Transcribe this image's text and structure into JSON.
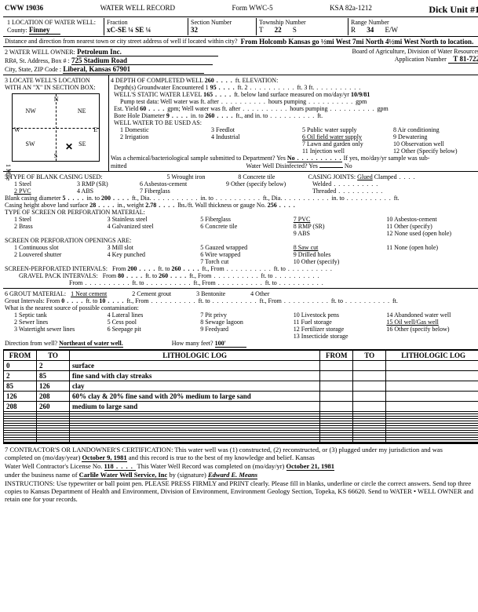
{
  "form": {
    "code": "CWW 19036",
    "title": "WATER WELL RECORD",
    "form_no": "Form WWC-5",
    "ksa": "KSA 82a-1212",
    "unit": "Dick Unit #1"
  },
  "loc": {
    "label": "1 LOCATION OF WATER WELL:",
    "county_label": "County:",
    "county": "Finney",
    "fraction_label": "Fraction",
    "fraction": "xC-SE ¼ SE ¼",
    "section_label": "Section Number",
    "section": "32",
    "township_label": "Township Number",
    "township_t": "T",
    "township": "22",
    "township_s": "S",
    "range_label": "Range Number",
    "range_r": "R",
    "range": "34",
    "range_ew": "E/W",
    "dist_label": "Distance and direction from nearest town or city street address of well if located within city?",
    "dist": "From Holcomb Kansas go ½mi West 7mi North 4½mi West North to location."
  },
  "owner": {
    "label": "2 WATER WELL OWNER:",
    "name": "Petroleum Inc.",
    "addr_label": "RR#, St. Address, Box # :",
    "addr": "725 Stadium Road",
    "csz_label": "City, State, ZIP Code :",
    "csz": "Liberal, Kansas 67901",
    "board": "Board of Agriculture, Division of Water Resources",
    "app_label": "Application Number",
    "app": "T 81-722"
  },
  "sec3": {
    "label": "3 LOCATE WELL'S LOCATION WITH AN \"X\" IN SECTION BOX:",
    "side": "1 Mile",
    "nw": "NW",
    "ne": "NE",
    "sw": "SW",
    "se": "SE",
    "n": "N",
    "s": "S",
    "e": "E",
    "w": "W"
  },
  "sec4": {
    "label": "4 DEPTH OF COMPLETED WELL",
    "depth": "260",
    "depth_unit": "ft. ELEVATION:",
    "gw_label": "Depth(s) Groundwater Encountered",
    "gw1": "1",
    "gw1v": "95",
    "gw_ft": "ft.",
    "gw2": "2",
    "gw3": "ft. 3",
    "gw_ft2": "ft.",
    "static_label": "WELL'S STATIC WATER LEVEL",
    "static": "165",
    "static_txt": "ft. below land surface measured on mo/day/yr",
    "static_date": "10/9/81",
    "pump_label": "Pump test data:  Well water was",
    "pump_after": "ft. after",
    "pump_hours": "hours pumping",
    "pump_gpm": "gpm",
    "yield_label": "Est. Yield",
    "yield": "60",
    "yield_unit": "gpm;  Well water was",
    "yield_after": "ft. after",
    "yield_hours": "hours pumping",
    "yield_gpm": "gpm",
    "bore_label": "Bore Hole Diameter",
    "bore": "9",
    "bore_in": "in. to",
    "bore_to": "260",
    "bore_ft": "ft., and",
    "bore_in2": "in. to",
    "bore_ft2": "ft.",
    "use_label": "WELL WATER TO BE USED AS:",
    "u1": "1 Domestic",
    "u2": "2 Irrigation",
    "u3": "3 Feedlot",
    "u4": "4 Industrial",
    "u5": "5 Public water supply",
    "u6": "6 Oil field water supply",
    "u7": "7 Lawn and garden only",
    "u8": "8 Air conditioning",
    "u9": "9 Dewatering",
    "u10": "10 Observation well",
    "u11": "11 Injection well",
    "u12": "12 Other (Specify below)",
    "bact_label": "Was a chemical/bacteriological sample submitted to Department? Yes",
    "bact_no": "No",
    "bact_txt": "If yes, mo/day/yr sample was sub-",
    "mitted": "mitted",
    "disinfect": "Water Well Disinfected?  Yes",
    "disinfect_no": "No"
  },
  "sec5": {
    "label": "5 TYPE OF BLANK CASING USED:",
    "c1": "1 Steel",
    "c2": "2 PVC",
    "c3": "3 RMP (SR)",
    "c4": "4 ABS",
    "c5": "5 Wrought iron",
    "c6": "6 Asbestos-cement",
    "c7": "7 Fiberglass",
    "c8": "8 Concrete tile",
    "c9": "9 Other (specify below)",
    "joints": "CASING JOINTS:",
    "j1": "Glued",
    "j2": "Clamped",
    "j3": "Welded",
    "j4": "Threaded",
    "dia_label": "Blank casing diameter",
    "dia": "5",
    "dia_in": "in. to",
    "dia_to": "200",
    "dia_ft": "ft., Dia.",
    "dia_in2": "in. to",
    "dia_ft2": "ft., Dia.",
    "dia_in3": "in. to",
    "dia_ft3": "ft.",
    "height_label": "Casing height above land surface",
    "height": "28",
    "height_in": "in., weight",
    "weight": "2.78",
    "weight_unit": "lbs./ft. Wall thickness or gauge No.",
    "gauge": "256",
    "screen_label": "TYPE OF SCREEN OR PERFORATION MATERIAL:",
    "s1": "1 Steel",
    "s2": "2 Brass",
    "s3": "3 Stainless steel",
    "s4": "4 Galvanized steel",
    "s5": "5 Fiberglass",
    "s6": "6 Concrete tile",
    "s7": "7 PVC",
    "s8": "8 RMP (SR)",
    "s9": "9 ABS",
    "s10": "10 Asbestos-cement",
    "s11": "11 Other (specify)",
    "s12": "12 None used (open hole)",
    "open_label": "SCREEN OR PERFORATION OPENINGS ARE:",
    "o1": "1 Continuous slot",
    "o2": "2 Louvered shutter",
    "o3": "3 Mill slot",
    "o4": "4 Key punched",
    "o5": "5 Gauzed wrapped",
    "o6": "6 Wire wrapped",
    "o7": "7 Torch cut",
    "o8": "8 Saw cut",
    "o9": "9 Drilled holes",
    "o10": "10 Other (specify)",
    "o11": "11 None (open hole)",
    "spi_label": "SCREEN-PERFORATED INTERVALS:",
    "from": "From",
    "to": "ft. to",
    "ft": "ft., From",
    "spi_from": "200",
    "spi_to": "260",
    "gpi_label": "GRAVEL PACK INTERVALS:",
    "gpi_from": "80",
    "gpi_to": "260"
  },
  "sec6": {
    "label": "6 GROUT MATERIAL:",
    "g1": "1 Neat cement",
    "g2": "2 Cement grout",
    "g3": "3 Bentonite",
    "g4": "4 Other",
    "gi_label": "Grout Intervals: From",
    "gi_from": "0",
    "gi_to": "ft. to",
    "gi_tov": "10",
    "gi_ft": "ft., From",
    "gi_ft2": "ft. to",
    "gi_ft3": "ft., From",
    "gi_ft4": "ft. to",
    "gi_ft5": "ft.",
    "contam_label": "What is the nearest source of possible contamination:",
    "ct1": "1 Septic tank",
    "ct2": "2 Sewer lines",
    "ct3": "3 Watertight sewer lines",
    "ct4": "4 Lateral lines",
    "ct5": "5 Cess pool",
    "ct6": "6 Seepage pit",
    "ct7": "7 Pit privy",
    "ct8": "8 Sewage lagoon",
    "ct9": "9 Feedyard",
    "ct10": "10 Livestock pens",
    "ct11": "11 Fuel storage",
    "ct12": "12 Fertilizer storage",
    "ct13": "13 Insecticide storage",
    "ct14": "14 Abandoned water well",
    "ct15": "15 Oil well/Gas well",
    "ct16": "16 Other (specify below)",
    "dir_label": "Direction from well?",
    "dir": "Northeast of water well.",
    "feet_label": "How many feet?",
    "feet": "100'"
  },
  "log": {
    "hdr_from": "FROM",
    "hdr_to": "TO",
    "hdr_lith": "LITHOLOGIC LOG",
    "rows": [
      {
        "f": "0",
        "t": "2",
        "d": "surface"
      },
      {
        "f": "2",
        "t": "85",
        "d": "fine sand with clay streaks"
      },
      {
        "f": "85",
        "t": "126",
        "d": "clay"
      },
      {
        "f": "126",
        "t": "208",
        "d": "60% clay & 20% fine sand with 20% medium to large sand"
      },
      {
        "f": "208",
        "t": "260",
        "d": "medium to large sand"
      }
    ]
  },
  "cert": {
    "label": "7 CONTRACTOR'S OR LANDOWNER'S CERTIFICATION: This water well was (1) constructed, (2) reconstructed, or (3) plugged under my jurisdiction and was",
    "line2a": "completed on (mo/day/year)",
    "date1": "October 9, 1981",
    "line2b": "and this record is true to the best of my knowledge and belief. Kansas",
    "line3a": "Water Well Contractor's License No.",
    "lic": "118",
    "line3b": "This Water Well Record was completed on (mo/day/yr)",
    "date2": "October 21, 1981",
    "line4a": "under the business name of",
    "biz": "Carlile Water Well Service, Inc",
    "line4b": "by (signature)",
    "sig": "Edward E. Means",
    "instr": "INSTRUCTIONS: Use typewriter or ball point pen. PLEASE PRESS FIRMLY and PRINT clearly. Please fill in blanks, underline or circle the correct answers. Send top three copies to Kansas Department of Health and Environment, Division of Environment, Environment Geology Section, Topeka, KS 66620. Send to WATER • WELL OWNER and retain one for your records."
  },
  "side_text": "OFFICE USE ONLY"
}
